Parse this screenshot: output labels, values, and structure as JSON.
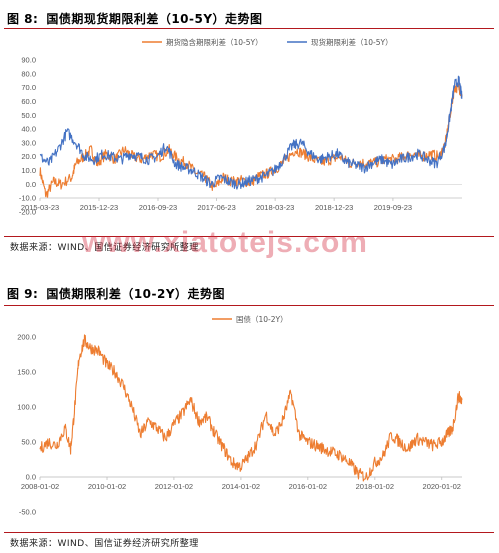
{
  "figures": [
    {
      "number": "图 8:",
      "title": "国债期现货期限利差（10-5Y）走势图",
      "source": "数据来源：WIND、国信证券经济研究所整理"
    },
    {
      "number": "图 9:",
      "title": "国债期限利差（10-2Y）走势图",
      "source": "数据来源：WIND、国信证券经济研究所整理"
    }
  ],
  "watermark": "www.xiatotejs.com",
  "chart_data": [
    {
      "type": "line",
      "ylim": [
        -20,
        90
      ],
      "yticks": [
        "-20.0",
        "-10.0",
        "0.0",
        "10.0",
        "20.0",
        "30.0",
        "40.0",
        "50.0",
        "60.0",
        "70.0",
        "80.0",
        "90.0"
      ],
      "xticks": [
        {
          "date": "2015-03-23",
          "label": "2015-03-23"
        },
        {
          "date": "2015-12-23",
          "label": "2015-12-23"
        },
        {
          "date": "2016-09-23",
          "label": "2016-09-23"
        },
        {
          "date": "2017-06-23",
          "label": "2017-06-23"
        },
        {
          "date": "2018-03-23",
          "label": "2018-03-23"
        },
        {
          "date": "2018-12-23",
          "label": "2018-12-23"
        },
        {
          "date": "2019-09-23",
          "label": "2019-09-23"
        }
      ],
      "xlim": [
        "2015-03-23",
        "2020-08-10"
      ],
      "series": [
        {
          "name": "期货隐含期限利差（10-5Y）",
          "color": "#ED7D31",
          "points": [
            [
              "2015-03-23",
              10
            ],
            [
              "2015-04-20",
              -8
            ],
            [
              "2015-05-25",
              2
            ],
            [
              "2015-06-29",
              0
            ],
            [
              "2015-08-17",
              5
            ],
            [
              "2015-09-07",
              15
            ],
            [
              "2015-10-12",
              20
            ],
            [
              "2015-11-16",
              25
            ],
            [
              "2015-12-14",
              15
            ],
            [
              "2016-01-25",
              22
            ],
            [
              "2016-03-07",
              18
            ],
            [
              "2016-04-18",
              25
            ],
            [
              "2016-05-30",
              20
            ],
            [
              "2016-07-11",
              18
            ],
            [
              "2016-08-22",
              22
            ],
            [
              "2016-10-03",
              20
            ],
            [
              "2016-11-14",
              25
            ],
            [
              "2016-12-26",
              18
            ],
            [
              "2017-02-06",
              15
            ],
            [
              "2017-03-20",
              8
            ],
            [
              "2017-05-01",
              5
            ],
            [
              "2017-06-12",
              -3
            ],
            [
              "2017-07-24",
              5
            ],
            [
              "2017-09-04",
              2
            ],
            [
              "2017-10-16",
              3
            ],
            [
              "2017-11-27",
              1
            ],
            [
              "2018-01-08",
              6
            ],
            [
              "2018-02-19",
              8
            ],
            [
              "2018-04-02",
              12
            ],
            [
              "2018-05-14",
              18
            ],
            [
              "2018-06-25",
              25
            ],
            [
              "2018-08-06",
              22
            ],
            [
              "2018-09-17",
              18
            ],
            [
              "2018-10-29",
              16
            ],
            [
              "2018-12-10",
              18
            ],
            [
              "2019-01-21",
              20
            ],
            [
              "2019-03-04",
              15
            ],
            [
              "2019-04-15",
              16
            ],
            [
              "2019-05-27",
              15
            ],
            [
              "2019-07-08",
              16
            ],
            [
              "2019-08-19",
              18
            ],
            [
              "2019-09-30",
              18
            ],
            [
              "2019-11-11",
              20
            ],
            [
              "2019-12-23",
              22
            ],
            [
              "2020-02-03",
              20
            ],
            [
              "2020-03-16",
              22
            ],
            [
              "2020-04-27",
              20
            ],
            [
              "2020-05-25",
              30
            ],
            [
              "2020-06-15",
              50
            ],
            [
              "2020-07-06",
              70
            ],
            [
              "2020-07-27",
              70
            ],
            [
              "2020-08-10",
              65
            ]
          ]
        },
        {
          "name": "现货期限利差（10-5Y）",
          "color": "#4472C4",
          "points": [
            [
              "2015-03-23",
              20
            ],
            [
              "2015-05-04",
              15
            ],
            [
              "2015-06-15",
              25
            ],
            [
              "2015-07-27",
              38
            ],
            [
              "2015-09-07",
              30
            ],
            [
              "2015-10-19",
              20
            ],
            [
              "2015-11-30",
              18
            ],
            [
              "2016-01-11",
              22
            ],
            [
              "2016-02-22",
              20
            ],
            [
              "2016-04-04",
              18
            ],
            [
              "2016-05-16",
              22
            ],
            [
              "2016-06-27",
              20
            ],
            [
              "2016-08-08",
              18
            ],
            [
              "2016-09-19",
              20
            ],
            [
              "2016-10-31",
              28
            ],
            [
              "2016-12-12",
              15
            ],
            [
              "2017-01-23",
              12
            ],
            [
              "2017-03-06",
              10
            ],
            [
              "2017-04-17",
              5
            ],
            [
              "2017-05-29",
              0
            ],
            [
              "2017-07-10",
              5
            ],
            [
              "2017-08-21",
              2
            ],
            [
              "2017-10-02",
              0
            ],
            [
              "2017-11-13",
              2
            ],
            [
              "2017-12-25",
              4
            ],
            [
              "2018-02-05",
              6
            ],
            [
              "2018-03-19",
              10
            ],
            [
              "2018-04-30",
              18
            ],
            [
              "2018-06-11",
              28
            ],
            [
              "2018-07-23",
              30
            ],
            [
              "2018-09-03",
              22
            ],
            [
              "2018-10-15",
              18
            ],
            [
              "2018-11-26",
              20
            ],
            [
              "2019-01-07",
              22
            ],
            [
              "2019-02-18",
              16
            ],
            [
              "2019-04-01",
              14
            ],
            [
              "2019-05-13",
              12
            ],
            [
              "2019-06-24",
              16
            ],
            [
              "2019-08-05",
              18
            ],
            [
              "2019-09-16",
              14
            ],
            [
              "2019-10-28",
              18
            ],
            [
              "2019-12-09",
              20
            ],
            [
              "2020-01-20",
              22
            ],
            [
              "2020-03-02",
              18
            ],
            [
              "2020-04-13",
              15
            ],
            [
              "2020-05-25",
              28
            ],
            [
              "2020-06-15",
              50
            ],
            [
              "2020-07-06",
              72
            ],
            [
              "2020-07-27",
              75
            ],
            [
              "2020-08-10",
              62
            ]
          ]
        }
      ]
    },
    {
      "type": "line",
      "ylim": [
        -50,
        200
      ],
      "yticks": [
        "-50.0",
        "0.0",
        "50.0",
        "100.0",
        "150.0",
        "200.0"
      ],
      "xticks": [
        {
          "date": "2008-01-02",
          "label": "2008-01-02"
        },
        {
          "date": "2010-01-02",
          "label": "2010-01-02"
        },
        {
          "date": "2012-01-02",
          "label": "2012-01-02"
        },
        {
          "date": "2014-01-02",
          "label": "2014-01-02"
        },
        {
          "date": "2016-01-02",
          "label": "2016-01-02"
        },
        {
          "date": "2018-01-02",
          "label": "2018-01-02"
        },
        {
          "date": "2020-01-02",
          "label": "2020-01-02"
        }
      ],
      "xlim": [
        "2008-01-02",
        "2020-08-10"
      ],
      "series": [
        {
          "name": "国债（10-2Y）",
          "color": "#ED7D31",
          "points": [
            [
              "2008-01-02",
              40
            ],
            [
              "2008-04-01",
              50
            ],
            [
              "2008-07-01",
              45
            ],
            [
              "2008-10-01",
              70
            ],
            [
              "2008-12-01",
              40
            ],
            [
              "2009-01-15",
              100
            ],
            [
              "2009-03-01",
              170
            ],
            [
              "2009-05-01",
              195
            ],
            [
              "2009-07-01",
              185
            ],
            [
              "2009-10-01",
              180
            ],
            [
              "2010-01-01",
              160
            ],
            [
              "2010-04-01",
              150
            ],
            [
              "2010-07-01",
              130
            ],
            [
              "2010-10-01",
              100
            ],
            [
              "2011-01-01",
              60
            ],
            [
              "2011-04-01",
              80
            ],
            [
              "2011-07-01",
              70
            ],
            [
              "2011-10-01",
              55
            ],
            [
              "2012-01-01",
              75
            ],
            [
              "2012-04-01",
              90
            ],
            [
              "2012-07-01",
              110
            ],
            [
              "2012-10-01",
              80
            ],
            [
              "2013-01-01",
              85
            ],
            [
              "2013-04-01",
              60
            ],
            [
              "2013-07-01",
              40
            ],
            [
              "2013-10-01",
              20
            ],
            [
              "2014-01-01",
              15
            ],
            [
              "2014-04-01",
              30
            ],
            [
              "2014-07-01",
              50
            ],
            [
              "2014-10-01",
              90
            ],
            [
              "2015-01-01",
              60
            ],
            [
              "2015-04-01",
              80
            ],
            [
              "2015-07-01",
              120
            ],
            [
              "2015-10-01",
              60
            ],
            [
              "2016-01-01",
              50
            ],
            [
              "2016-04-01",
              45
            ],
            [
              "2016-07-01",
              40
            ],
            [
              "2016-10-01",
              35
            ],
            [
              "2017-01-01",
              30
            ],
            [
              "2017-04-01",
              20
            ],
            [
              "2017-07-01",
              5
            ],
            [
              "2017-10-01",
              0
            ],
            [
              "2018-01-01",
              20
            ],
            [
              "2018-04-01",
              30
            ],
            [
              "2018-07-01",
              60
            ],
            [
              "2018-10-01",
              50
            ],
            [
              "2019-01-01",
              40
            ],
            [
              "2019-04-01",
              55
            ],
            [
              "2019-07-01",
              50
            ],
            [
              "2019-10-01",
              45
            ],
            [
              "2020-01-01",
              50
            ],
            [
              "2020-03-01",
              60
            ],
            [
              "2020-05-01",
              70
            ],
            [
              "2020-07-01",
              115
            ],
            [
              "2020-08-10",
              110
            ]
          ]
        }
      ]
    }
  ]
}
